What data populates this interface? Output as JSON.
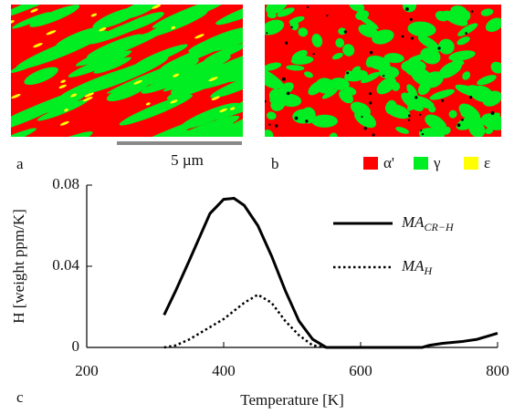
{
  "panels": {
    "a": {
      "label": "a",
      "scale_bar": "5 µm"
    },
    "b": {
      "label": "b"
    },
    "c": {
      "label": "c"
    }
  },
  "phase_legend": [
    {
      "name": "α'",
      "color": "#ff0000"
    },
    {
      "name": "γ",
      "color": "#00ee22"
    },
    {
      "name": "ε",
      "color": "#ffff00"
    }
  ],
  "chart_data": {
    "type": "line",
    "x_label": "Temperature [K]",
    "y_label": "H [weight ppm/K]",
    "x": [
      313,
      330,
      350,
      380,
      400,
      415,
      430,
      450,
      470,
      490,
      510,
      530,
      550,
      600,
      650,
      690,
      700,
      720,
      750,
      770,
      790,
      800
    ],
    "series": [
      {
        "name": "MA",
        "name_sub": "CR−H",
        "color": "#000000",
        "style": "solid",
        "values": [
          0.016,
          0.028,
          0.043,
          0.066,
          0.073,
          0.0735,
          0.07,
          0.06,
          0.045,
          0.028,
          0.013,
          0.004,
          0,
          0,
          0,
          0,
          0.001,
          0.002,
          0.003,
          0.004,
          0.006,
          0.007
        ]
      },
      {
        "name": "MA",
        "name_sub": "H",
        "color": "#000000",
        "style": "dotted",
        "values": [
          0,
          0.001,
          0.004,
          0.01,
          0.014,
          0.018,
          0.022,
          0.026,
          0.022,
          0.013,
          0.006,
          0.001,
          0,
          null,
          null,
          null,
          null,
          null,
          null,
          null,
          null,
          null
        ]
      }
    ],
    "xlim": [
      200,
      800
    ],
    "ylim": [
      0,
      0.08
    ],
    "xticks": [
      200,
      400,
      600,
      800
    ],
    "yticks": [
      0,
      0.04,
      0.08
    ],
    "legend": "upper right",
    "grid": false
  }
}
